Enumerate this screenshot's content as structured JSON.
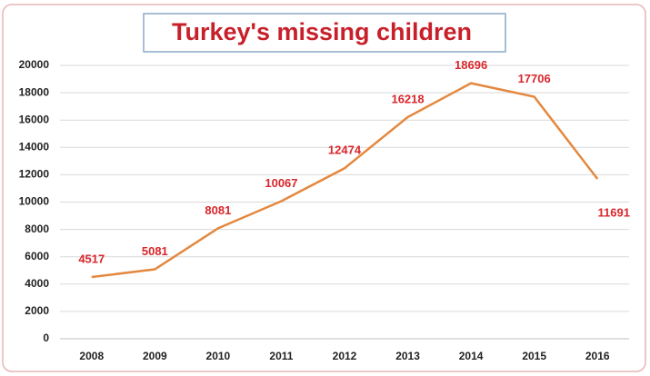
{
  "chart_data": {
    "type": "line",
    "title": "Turkey's missing children",
    "categories": [
      "2008",
      "2009",
      "2010",
      "2011",
      "2012",
      "2013",
      "2014",
      "2015",
      "2016"
    ],
    "values": [
      4517,
      5081,
      8081,
      10067,
      12474,
      16218,
      18696,
      17706,
      11691
    ],
    "color": "#e4883f",
    "label_color": "#d9262b",
    "ylim": [
      0,
      20000
    ],
    "yticks": [
      0,
      2000,
      4000,
      6000,
      8000,
      10000,
      12000,
      14000,
      16000,
      18000,
      20000
    ],
    "grid": true
  }
}
